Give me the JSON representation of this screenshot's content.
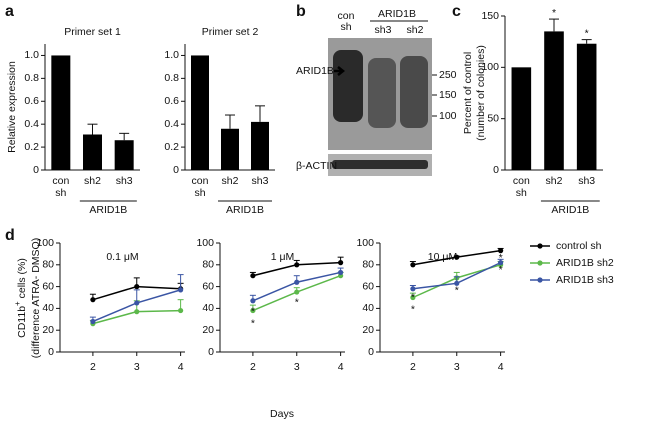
{
  "panel_labels": [
    "a",
    "b",
    "c",
    "d"
  ],
  "blot": {
    "lanes": [
      [
        "con",
        "sh"
      ],
      "sh3",
      "sh2"
    ],
    "group_label": "ARID1B",
    "band_label": "ARID1B",
    "markers": [
      250,
      150,
      100
    ],
    "loading_label": "β-ACTIN"
  },
  "panel_d": {
    "ylabel": {
      "main": "CD11b",
      "sup": "+",
      "rest": " cells (%)",
      "line2": "(difference ATRA- DMSO)"
    },
    "xlabel": "Days"
  },
  "chart_data": [
    {
      "type": "bar",
      "title": "Primer set 1",
      "ylabel": "Relative expression",
      "categories": [
        [
          "con",
          "sh"
        ],
        [
          "sh2"
        ],
        [
          "sh3"
        ]
      ],
      "group_label": "ARID1B",
      "values": [
        1.0,
        0.31,
        0.26
      ],
      "errors": [
        0,
        0.09,
        0.06
      ],
      "color": "#000000",
      "ylim": [
        0,
        1.1
      ],
      "yticks": [
        0,
        0.2,
        0.4,
        0.6,
        0.8,
        {
          "value": 1,
          "label": "1.0"
        }
      ]
    },
    {
      "type": "bar",
      "title": "Primer set 2",
      "categories": [
        [
          "con",
          "sh"
        ],
        [
          "sh2"
        ],
        [
          "sh3"
        ]
      ],
      "group_label": "ARID1B",
      "values": [
        1.0,
        0.36,
        0.42
      ],
      "errors": [
        0,
        0.12,
        0.14
      ],
      "color": "#000000",
      "ylim": [
        0,
        1.1
      ],
      "yticks": [
        0,
        0.2,
        0.4,
        0.6,
        0.8,
        {
          "value": 1,
          "label": "1.0"
        }
      ]
    },
    {
      "type": "bar",
      "ylabel": [
        "Percent of control",
        "(number of colonies)"
      ],
      "categories": [
        [
          "con",
          "sh"
        ],
        [
          "sh2"
        ],
        [
          "sh3"
        ]
      ],
      "group_label": "ARID1B",
      "values": [
        100,
        135,
        123
      ],
      "errors": [
        0,
        12,
        4
      ],
      "color": "#000000",
      "ylim": [
        0,
        150
      ],
      "yticks": [
        0,
        50,
        100,
        150
      ],
      "annotations": [
        {
          "text": "*",
          "x": "sh2"
        },
        {
          "text": "*",
          "x": "sh3"
        }
      ]
    },
    {
      "type": "line",
      "title": "0.1 μM",
      "x": [
        2,
        3,
        4
      ],
      "xlim": [
        1.25,
        4.1
      ],
      "xticks": [
        2,
        3,
        4
      ],
      "ylim": [
        0,
        100
      ],
      "yticks": [
        0,
        20,
        40,
        60,
        80,
        100
      ],
      "series": [
        {
          "color": "#000000",
          "values": [
            48,
            60,
            58
          ],
          "errors": [
            5,
            8,
            5
          ]
        },
        {
          "color": "#5cb84a",
          "values": [
            26,
            37,
            38
          ],
          "errors": [
            3,
            10,
            10
          ]
        },
        {
          "color": "#3a55a4",
          "values": [
            28,
            45,
            57
          ],
          "errors": [
            4,
            12,
            14
          ]
        }
      ]
    },
    {
      "type": "line",
      "title": "1 μM",
      "x": [
        2,
        3,
        4
      ],
      "xlim": [
        1.25,
        4.1
      ],
      "xticks": [
        2,
        3,
        4
      ],
      "ylim": [
        0,
        100
      ],
      "yticks": [
        0,
        20,
        40,
        60,
        80,
        100
      ],
      "series": [
        {
          "color": "#000000",
          "values": [
            70,
            80,
            82
          ],
          "errors": [
            3,
            4,
            5
          ]
        },
        {
          "color": "#5cb84a",
          "values": [
            38,
            55,
            70
          ],
          "errors": [
            5,
            4,
            3
          ]
        },
        {
          "color": "#3a55a4",
          "values": [
            47,
            64,
            73
          ],
          "errors": [
            5,
            6,
            4
          ]
        }
      ],
      "annotations": [
        {
          "text": "*",
          "x": 2,
          "y": 37
        },
        {
          "text": "*",
          "x": 2,
          "y": 26
        },
        {
          "text": "*",
          "x": 3,
          "y": 45
        }
      ]
    },
    {
      "type": "line",
      "title": "10 μM",
      "x": [
        2,
        3,
        4
      ],
      "xlim": [
        1.25,
        4.1
      ],
      "xticks": [
        2,
        3,
        4
      ],
      "ylim": [
        0,
        100
      ],
      "yticks": [
        0,
        20,
        40,
        60,
        80,
        100
      ],
      "series": [
        {
          "name": "control sh",
          "color": "#000000",
          "values": [
            80,
            87,
            93
          ],
          "errors": [
            3,
            1,
            2
          ]
        },
        {
          "name": "ARID1B sh2",
          "color": "#5cb84a",
          "values": [
            50,
            68,
            80
          ],
          "errors": [
            4,
            5,
            3
          ]
        },
        {
          "name": "ARID1B sh3",
          "color": "#3a55a4",
          "values": [
            58,
            63,
            82
          ],
          "errors": [
            3,
            6,
            3
          ]
        }
      ],
      "annotations": [
        {
          "text": "*",
          "x": 2,
          "y": 50
        },
        {
          "text": "*",
          "x": 2,
          "y": 39
        },
        {
          "text": "*",
          "x": 3,
          "y": 56
        },
        {
          "text": "*",
          "x": 4,
          "y": 86
        },
        {
          "text": "*",
          "x": 4,
          "y": 75
        }
      ]
    }
  ]
}
